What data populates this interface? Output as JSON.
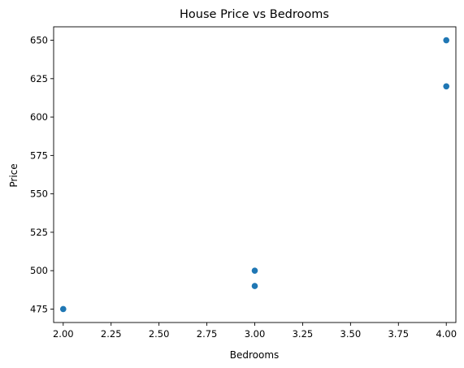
{
  "chart_data": {
    "type": "scatter",
    "title": "House Price vs Bedrooms",
    "xlabel": "Bedrooms",
    "ylabel": "Price",
    "xlim": [
      1.95,
      4.05
    ],
    "ylim": [
      466.25,
      658.75
    ],
    "xticks": [
      2.0,
      2.25,
      2.5,
      2.75,
      3.0,
      3.25,
      3.5,
      3.75,
      4.0
    ],
    "xtick_labels": [
      "2.00",
      "2.25",
      "2.50",
      "2.75",
      "3.00",
      "3.25",
      "3.50",
      "3.75",
      "4.00"
    ],
    "yticks": [
      475,
      500,
      525,
      550,
      575,
      600,
      625,
      650
    ],
    "ytick_labels": [
      "475",
      "500",
      "525",
      "550",
      "575",
      "600",
      "625",
      "650"
    ],
    "grid": false,
    "color": "#1f77b4",
    "series": [
      {
        "x": [
          2,
          3,
          3,
          4,
          4
        ],
        "y": [
          475,
          490,
          500,
          620,
          650
        ]
      }
    ]
  }
}
